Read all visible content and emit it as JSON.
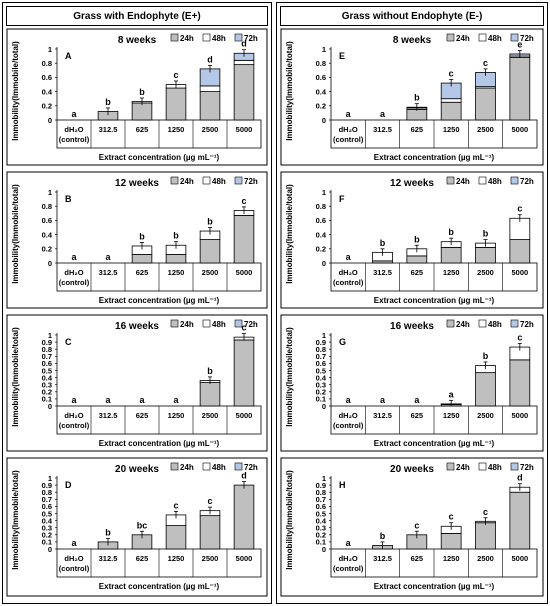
{
  "columns": [
    {
      "header": "Grass with Endophyte (E+)"
    },
    {
      "header": "Grass without Endophyte (E-)"
    }
  ],
  "legend": [
    "24h",
    "48h",
    "72h"
  ],
  "colors": {
    "24h": "#bfbfbf",
    "48h": "#ffffff",
    "72h": "#b4c7e7"
  },
  "chart_data": [
    {
      "type": "bar",
      "stacked": true,
      "letter": "A",
      "title": "8 weeks",
      "xlabel": "Extract concentration (µg mL⁻¹)",
      "ylabel": "Immobility(Immobile/total)",
      "ylim": [
        0,
        1
      ],
      "yticks": [
        "0",
        "0.2",
        "0.4",
        "0.6",
        "0.8",
        "1"
      ],
      "categories": [
        "dH₂O (control)",
        "312.5",
        "625",
        "1250",
        "2500",
        "5000"
      ],
      "series": [
        {
          "name": "24h",
          "values": [
            0,
            0.12,
            0.24,
            0.45,
            0.4,
            0.78
          ]
        },
        {
          "name": "48h",
          "values": [
            0,
            0,
            0.02,
            0.05,
            0.08,
            0.06
          ]
        },
        {
          "name": "72h",
          "values": [
            0,
            0,
            0,
            0,
            0.24,
            0.1
          ]
        }
      ],
      "labels": [
        "a",
        "b",
        "b",
        "c",
        "d",
        "d"
      ],
      "legend_position": "top-right"
    },
    {
      "type": "bar",
      "stacked": true,
      "letter": "E",
      "title": "8 weeks",
      "xlabel": "Extract concentration (µg mL⁻¹)",
      "ylabel": "Immobility(Immobile/total)",
      "ylim": [
        0,
        1
      ],
      "yticks": [
        "0",
        "0.2",
        "0.4",
        "0.6",
        "0.8",
        "1"
      ],
      "categories": [
        "dH₂O (control)",
        "312.5",
        "625",
        "1250",
        "2500",
        "5000"
      ],
      "series": [
        {
          "name": "24h",
          "values": [
            0,
            0,
            0.15,
            0.25,
            0.45,
            0.88
          ]
        },
        {
          "name": "48h",
          "values": [
            0,
            0,
            0.02,
            0.05,
            0.02,
            0.02
          ]
        },
        {
          "name": "72h",
          "values": [
            0,
            0,
            0.01,
            0.22,
            0.2,
            0.03
          ]
        }
      ],
      "labels": [
        "a",
        "a",
        "b",
        "c",
        "c",
        "e"
      ],
      "legend_position": "top-right"
    },
    {
      "type": "bar",
      "stacked": true,
      "letter": "B",
      "title": "12 weeks",
      "xlabel": "Extract concentration (µg mL⁻¹)",
      "ylabel": "Immobility(Immobile/total)",
      "ylim": [
        0,
        1
      ],
      "yticks": [
        "0",
        "0.2",
        "0.4",
        "0.6",
        "0.8",
        "1"
      ],
      "categories": [
        "dH₂O (control)",
        "312.5",
        "625",
        "1250",
        "2500",
        "5000"
      ],
      "series": [
        {
          "name": "24h",
          "values": [
            0,
            0,
            0.12,
            0.12,
            0.33,
            0.67
          ]
        },
        {
          "name": "48h",
          "values": [
            0,
            0,
            0.12,
            0.13,
            0.12,
            0.07
          ]
        },
        {
          "name": "72h",
          "values": [
            0,
            0,
            0,
            0,
            0,
            0
          ]
        }
      ],
      "labels": [
        "a",
        "a",
        "b",
        "b",
        "b",
        "c"
      ],
      "legend_position": "top-right"
    },
    {
      "type": "bar",
      "stacked": true,
      "letter": "F",
      "title": "12 weeks",
      "xlabel": "Extract concentration (µg mL⁻¹)",
      "ylabel": "Immobility(Immobile/total)",
      "ylim": [
        0,
        1
      ],
      "yticks": [
        "0",
        "0.2",
        "0.4",
        "0.6",
        "0.8",
        "1"
      ],
      "categories": [
        "dH₂O (control)",
        "312.5",
        "625",
        "1250",
        "2500",
        "5000"
      ],
      "series": [
        {
          "name": "24h",
          "values": [
            0,
            0.03,
            0.1,
            0.22,
            0.22,
            0.33
          ]
        },
        {
          "name": "48h",
          "values": [
            0,
            0.12,
            0.1,
            0.08,
            0.06,
            0.3
          ]
        },
        {
          "name": "72h",
          "values": [
            0,
            0,
            0,
            0,
            0,
            0
          ]
        }
      ],
      "labels": [
        "a",
        "b",
        "b",
        "b",
        "b",
        "c"
      ],
      "legend_position": "top-right"
    },
    {
      "type": "bar",
      "stacked": true,
      "letter": "C",
      "title": "16 weeks",
      "xlabel": "Extract concentration (µg mL⁻¹)",
      "ylabel": "Immobility(Immobile/total)",
      "ylim": [
        0,
        1
      ],
      "yticks": [
        "0",
        "0.1",
        "0.2",
        "0.3",
        "0.4",
        "0.5",
        "0.6",
        "0.7",
        "0.8",
        "0.9",
        "1"
      ],
      "categories": [
        "dH₂O (control)",
        "312.5",
        "625",
        "1250",
        "2500",
        "5000"
      ],
      "series": [
        {
          "name": "24h",
          "values": [
            0,
            0,
            0,
            0,
            0.33,
            0.93
          ]
        },
        {
          "name": "48h",
          "values": [
            0,
            0,
            0,
            0,
            0.03,
            0.04
          ]
        },
        {
          "name": "72h",
          "values": [
            0,
            0,
            0,
            0,
            0,
            0
          ]
        }
      ],
      "labels": [
        "a",
        "a",
        "a",
        "a",
        "b",
        "c"
      ],
      "legend_position": "top-right"
    },
    {
      "type": "bar",
      "stacked": true,
      "letter": "G",
      "title": "16 weeks",
      "xlabel": "Extract concentration (µg mL⁻¹)",
      "ylabel": "Immobility(Immobile/total)",
      "ylim": [
        0,
        1
      ],
      "yticks": [
        "0",
        "0.1",
        "0.2",
        "0.3",
        "0.4",
        "0.5",
        "0.6",
        "0.7",
        "0.8",
        "0.9",
        "1"
      ],
      "categories": [
        "dH₂O (control)",
        "312.5",
        "625",
        "1250",
        "2500",
        "5000"
      ],
      "series": [
        {
          "name": "24h",
          "values": [
            0,
            0,
            0,
            0.02,
            0.47,
            0.65
          ]
        },
        {
          "name": "48h",
          "values": [
            0,
            0,
            0,
            0.01,
            0.1,
            0.18
          ]
        },
        {
          "name": "72h",
          "values": [
            0,
            0,
            0,
            0,
            0,
            0
          ]
        }
      ],
      "labels": [
        "a",
        "a",
        "a",
        "a",
        "b",
        "c"
      ],
      "legend_position": "top-right"
    },
    {
      "type": "bar",
      "stacked": true,
      "letter": "D",
      "title": "20 weeks",
      "xlabel": "Extract concentration (µg mL⁻¹)",
      "ylabel": "Immobility(Immobile/total)",
      "ylim": [
        0,
        1
      ],
      "yticks": [
        "0",
        "0.1",
        "0.2",
        "0.3",
        "0.4",
        "0.5",
        "0.6",
        "0.7",
        "0.8",
        "0.9",
        "1"
      ],
      "categories": [
        "dH₂O (control)",
        "312.5",
        "625",
        "1250",
        "2500",
        "5000"
      ],
      "series": [
        {
          "name": "24h",
          "values": [
            0,
            0.1,
            0.2,
            0.33,
            0.47,
            0.9
          ]
        },
        {
          "name": "48h",
          "values": [
            0,
            0,
            0,
            0.15,
            0.07,
            0
          ]
        },
        {
          "name": "72h",
          "values": [
            0,
            0,
            0,
            0,
            0,
            0
          ]
        }
      ],
      "labels": [
        "a",
        "b",
        "bc",
        "c",
        "c",
        "d"
      ],
      "legend_position": "top-right"
    },
    {
      "type": "bar",
      "stacked": true,
      "letter": "H",
      "title": "20 weeks",
      "xlabel": "Extract concentration (µg mL⁻¹)",
      "ylabel": "Immobility(Immobile/total)",
      "ylim": [
        0,
        1
      ],
      "yticks": [
        "0",
        "0.1",
        "0.2",
        "0.3",
        "0.4",
        "0.5",
        "0.6",
        "0.7",
        "0.8",
        "0.9",
        "1"
      ],
      "categories": [
        "dH₂O (control)",
        "312.5",
        "625",
        "1250",
        "2500",
        "5000"
      ],
      "series": [
        {
          "name": "24h",
          "values": [
            0,
            0.05,
            0.2,
            0.22,
            0.37,
            0.8
          ]
        },
        {
          "name": "48h",
          "values": [
            0,
            0,
            0,
            0.1,
            0.02,
            0.07
          ]
        },
        {
          "name": "72h",
          "values": [
            0,
            0,
            0,
            0,
            0,
            0
          ]
        }
      ],
      "labels": [
        "a",
        "b",
        "c",
        "c",
        "c",
        "d"
      ],
      "legend_position": "top-right"
    }
  ]
}
